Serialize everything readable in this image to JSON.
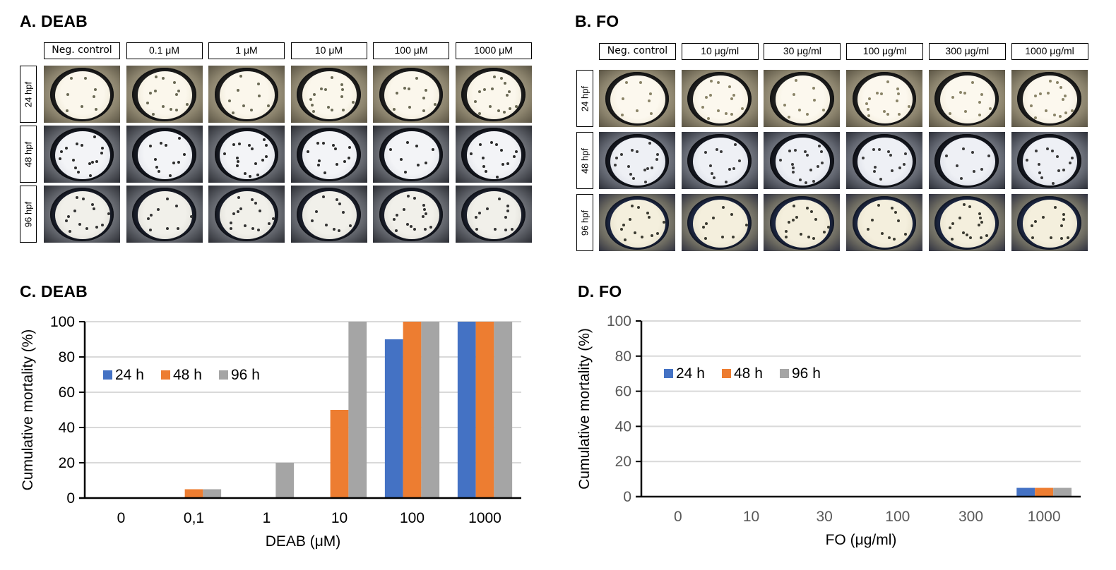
{
  "panels": {
    "A": {
      "title": "A. DEAB",
      "columns": [
        "Neg. control",
        "0.1 μM",
        "1 μM",
        "10 μM",
        "100 μM",
        "1000 μM"
      ],
      "rows": [
        "24 hpf",
        "48 hpf",
        "96 hpf"
      ]
    },
    "B": {
      "title": "B. FO",
      "columns": [
        "Neg. control",
        "10 μg/ml",
        "30 μg/ml",
        "100 μg/ml",
        "300 μg/ml",
        "1000 μg/ml"
      ],
      "rows": [
        "24 hpf",
        "48 hpf",
        "96 hpf"
      ]
    },
    "C": {
      "title": "C. DEAB"
    },
    "D": {
      "title": "D. FO"
    }
  },
  "colors": {
    "series_24h": "#4472C4",
    "series_48h": "#ED7D31",
    "series_96h": "#A5A5A5",
    "gridline": "#D9D9D9",
    "axis": "#000000"
  },
  "chart_data": [
    {
      "type": "bar",
      "title": "C. DEAB",
      "xlabel": "DEAB (μM)",
      "ylabel": "Cumulative mortality (%)",
      "categories": [
        "0",
        "0,1",
        "1",
        "10",
        "100",
        "1000"
      ],
      "series": [
        {
          "name": "24 h",
          "values": [
            0,
            0,
            0,
            0,
            90,
            100
          ]
        },
        {
          "name": "48 h",
          "values": [
            0,
            5,
            0,
            50,
            100,
            100
          ]
        },
        {
          "name": "96 h",
          "values": [
            0,
            5,
            20,
            100,
            100,
            100
          ]
        }
      ],
      "ylim": [
        0,
        100
      ],
      "yticks": [
        "0",
        "20",
        "40",
        "60",
        "80",
        "100"
      ],
      "grid": true,
      "legend": "upper-left"
    },
    {
      "type": "bar",
      "title": "D. FO",
      "xlabel": "FO (μg/ml)",
      "ylabel": "Cumulative mortality (%)",
      "categories": [
        "0",
        "10",
        "30",
        "100",
        "300",
        "1000"
      ],
      "series": [
        {
          "name": "24 h",
          "values": [
            0,
            0,
            0,
            0,
            0,
            5
          ]
        },
        {
          "name": "48 h",
          "values": [
            0,
            0,
            0,
            0,
            0,
            5
          ]
        },
        {
          "name": "96 h",
          "values": [
            0,
            0,
            0,
            0,
            0,
            5
          ]
        }
      ],
      "ylim": [
        0,
        100
      ],
      "yticks": [
        "0",
        "20",
        "40",
        "60",
        "80",
        "100"
      ],
      "grid": true,
      "legend": "upper-left"
    }
  ]
}
